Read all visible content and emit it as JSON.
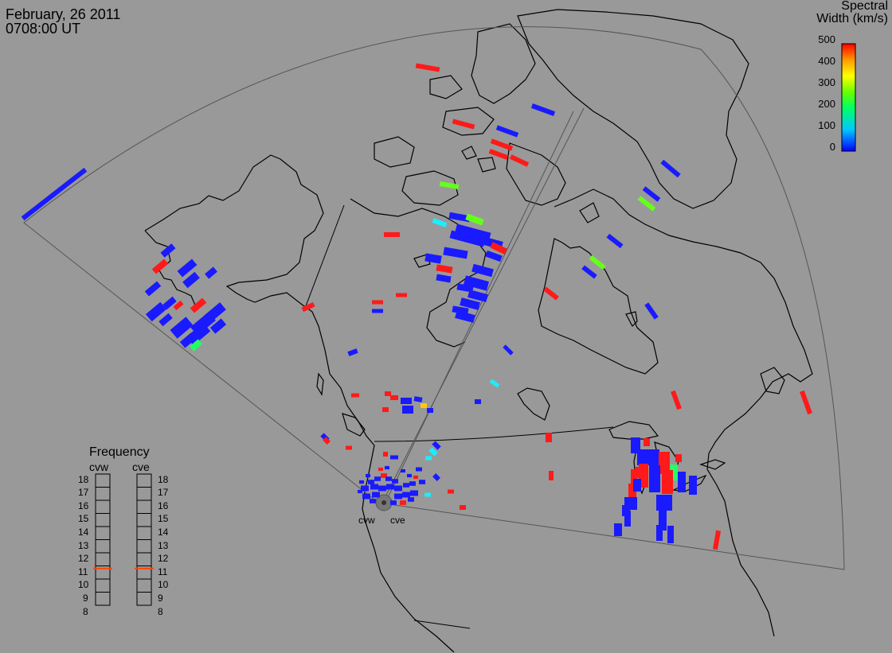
{
  "header": {
    "date": "February, 26 2011",
    "time": "0708:00 UT"
  },
  "colorbar": {
    "title_line1": "Spectral",
    "title_line2": "Width (km/s)",
    "ticks": [
      "500",
      "400",
      "300",
      "200",
      "100",
      "0"
    ],
    "colors": [
      "#0000ff",
      "#00c8ff",
      "#00ff66",
      "#66ff00",
      "#ffff00",
      "#ff9900",
      "#ff0000"
    ]
  },
  "frequency_panel": {
    "title": "Frequency",
    "radars": [
      {
        "name": "cvw",
        "current_mhz": 10.8
      },
      {
        "name": "cve",
        "current_mhz": 10.8
      }
    ],
    "ticks": [
      "18",
      "17",
      "16",
      "15",
      "14",
      "13",
      "12",
      "11",
      "10",
      "9",
      "8"
    ]
  },
  "sites": [
    {
      "label": "cvw"
    },
    {
      "label": "cve"
    }
  ],
  "map": {
    "background": "#999999",
    "coastline_color": "#000000",
    "fov_color": "#555555"
  }
}
